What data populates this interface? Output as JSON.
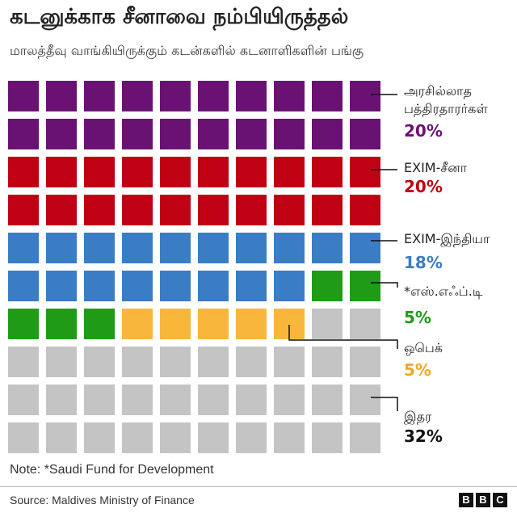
{
  "header": {
    "title": "கடனுக்காக சீனாவை நம்பியிருத்தல்",
    "subtitle": "மாலத்தீவு வாங்கியிருக்கும் கடன்களில் கடனாளிகளின் பங்கு"
  },
  "chart_data": {
    "type": "waffle",
    "title": "கடனுக்காக சீனாவை நம்பியிருத்தல்",
    "subtitle": "மாலத்தீவு வாங்கியிருக்கும் கடன்களில் கடனாளிகளின் பங்கு",
    "total_cells": 100,
    "columns": 10,
    "series": [
      {
        "name": "அரசில்லாத பத்திரதாரர்கள்",
        "label_lines": [
          "அரசில்லாத",
          "பத்திரதாரர்கள்"
        ],
        "value": 20,
        "pct_label": "20%",
        "color": "#6a1273"
      },
      {
        "name": "EXIM-சீனா",
        "label_lines": [
          "EXIM-சீனா"
        ],
        "value": 20,
        "pct_label": "20%",
        "color": "#c00013"
      },
      {
        "name": "EXIM-இந்தியா",
        "label_lines": [
          "EXIM-இந்தியா"
        ],
        "value": 18,
        "pct_label": "18%",
        "color": "#3a7dc4"
      },
      {
        "name": "*எஸ்.எஃப்.டி",
        "label_lines": [
          "*எஸ்.எஃப்.டி"
        ],
        "value": 5,
        "pct_label": "5%",
        "color": "#1f9b18"
      },
      {
        "name": "ஒபெக்",
        "label_lines": [
          "ஒபெக்"
        ],
        "value": 5,
        "pct_label": "5%",
        "color": "#f8b73a"
      },
      {
        "name": "இதர",
        "label_lines": [
          "இதர"
        ],
        "value": 32,
        "pct_label": "32%",
        "color": "#c4c4c4"
      }
    ]
  },
  "footer": {
    "note": "Note: *Saudi Fund for Development",
    "source": "Source: Maldives Ministry of Finance",
    "logo_letters": [
      "B",
      "B",
      "C"
    ]
  }
}
